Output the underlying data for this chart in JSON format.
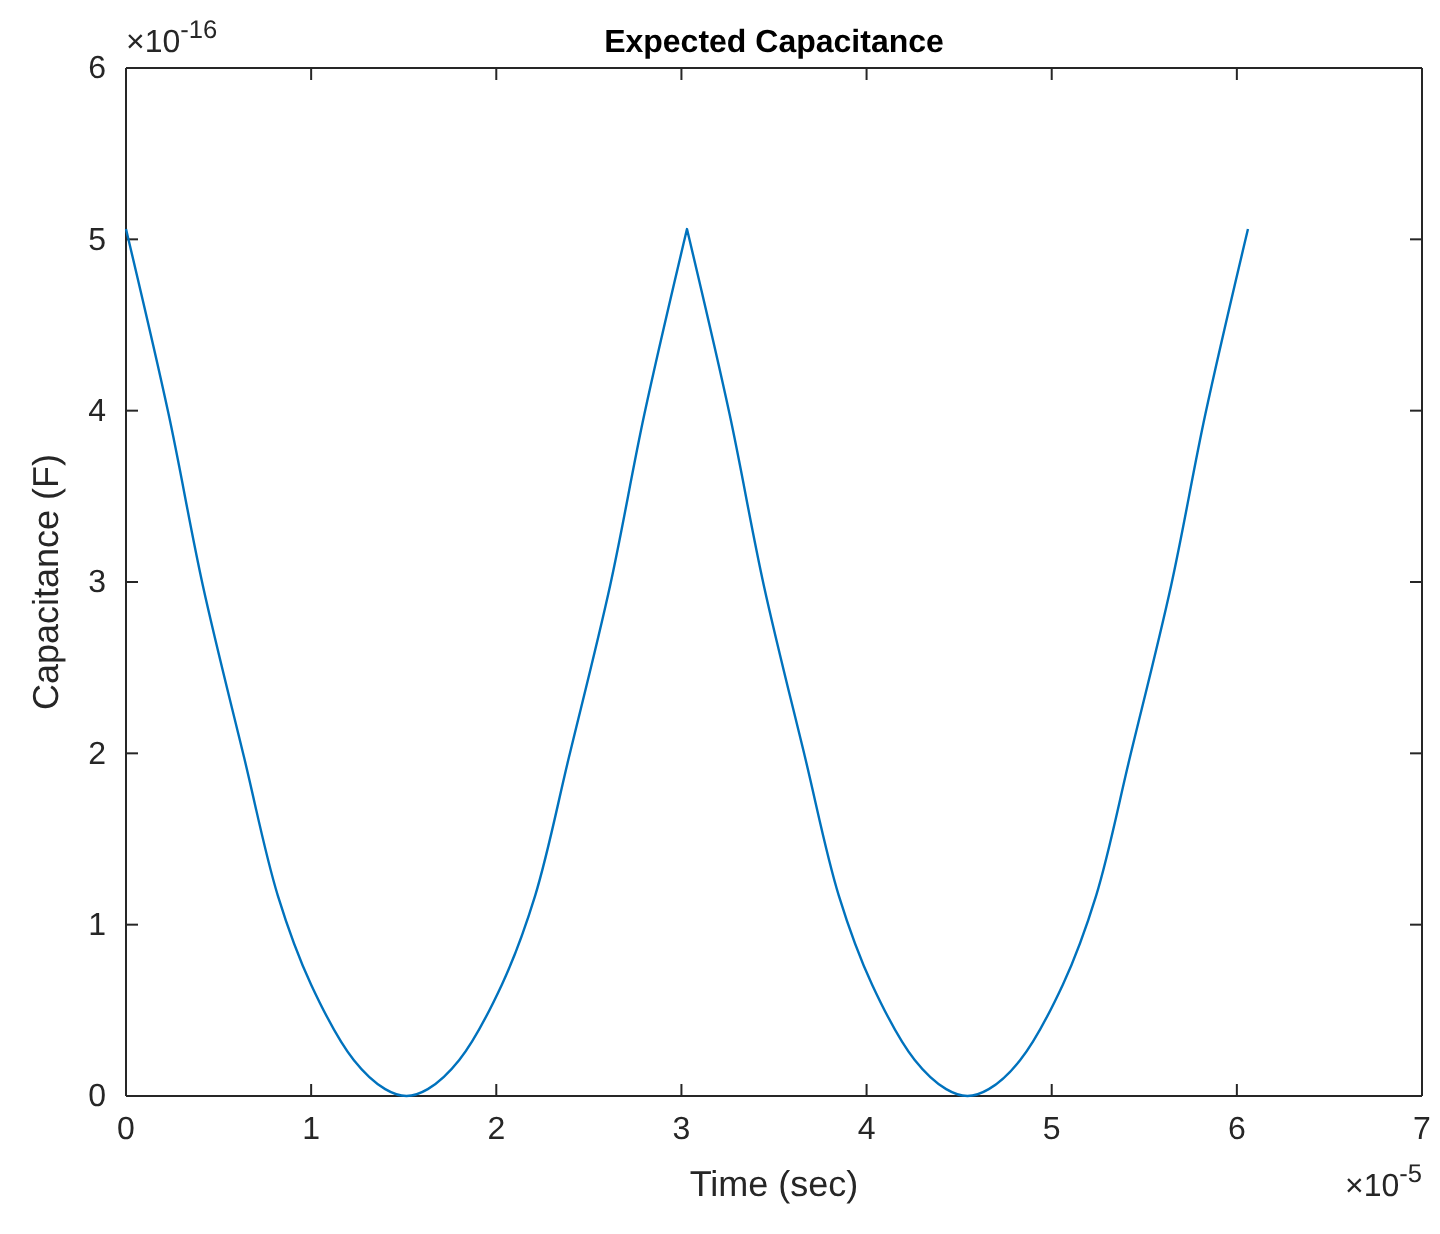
{
  "chart_data": {
    "type": "line",
    "title": "Expected Capacitance",
    "xlabel": "Time (sec)",
    "ylabel": "Capacitance (F)",
    "annotations": [
      "×10$^{-16}$",
      "×10$^{-5}$"
    ],
    "xlim": [
      0,
      7
    ],
    "xticks": [
      0,
      1,
      2,
      3,
      4,
      5,
      6,
      7
    ],
    "ylim": [
      0,
      6
    ],
    "yticks": [
      0,
      1,
      2,
      3,
      4,
      5,
      6
    ],
    "grid": false,
    "marker": "none",
    "line_style": "solid",
    "series": [
      {
        "color": "#0072bd",
        "x": [
          0,
          0.23,
          0.415,
          0.637,
          0.82,
          1.0,
          1.23,
          1.4,
          1.515,
          1.63,
          1.8,
          2.03,
          2.21,
          2.393,
          2.615,
          2.8,
          3.03,
          3.26,
          3.445,
          3.667,
          3.85,
          4.03,
          4.26,
          4.43,
          4.545,
          4.66,
          4.83,
          5.06,
          5.24,
          5.423,
          5.645,
          5.83,
          6.06
        ],
        "values": [
          5.06,
          3.98,
          2.98,
          1.98,
          1.17,
          0.65,
          0.21,
          0.04,
          0,
          0.04,
          0.21,
          0.65,
          1.17,
          1.98,
          2.98,
          3.98,
          5.06,
          3.98,
          2.98,
          1.98,
          1.17,
          0.65,
          0.21,
          0.04,
          0,
          0.04,
          0.21,
          0.65,
          1.17,
          1.98,
          2.98,
          3.98,
          5.06
        ]
      }
    ]
  }
}
